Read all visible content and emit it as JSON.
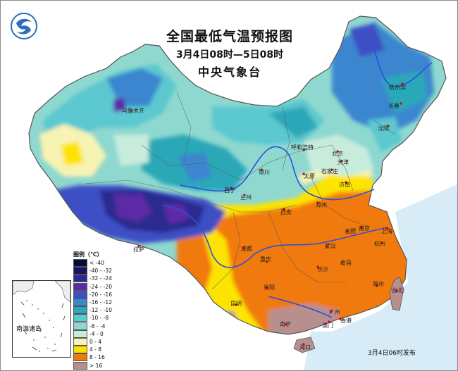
{
  "title": {
    "main": "全国最低气温预报图",
    "period": "3月4日08时—5日08时",
    "issuer": "中央气象台"
  },
  "legend": {
    "title": "图例（℃）",
    "items": [
      {
        "label": "< -40",
        "color": "#0a0a3a"
      },
      {
        "label": "-40 - -32",
        "color": "#151563"
      },
      {
        "label": "-32 - -24",
        "color": "#2a2a8f"
      },
      {
        "label": "-24 - -20",
        "color": "#5b2aa6"
      },
      {
        "label": "-20 - -16",
        "color": "#3e4fc4"
      },
      {
        "label": "-16 - -12",
        "color": "#3a86cf"
      },
      {
        "label": "-12 - -10",
        "color": "#2aa8b8"
      },
      {
        "label": "-10 - -8",
        "color": "#5cc8cf"
      },
      {
        "label": "-8 - -4",
        "color": "#8ed8cf"
      },
      {
        "label": "-4 - 0",
        "color": "#c8ecdc"
      },
      {
        "label": "0 - 4",
        "color": "#f7f3b2"
      },
      {
        "label": "4 - 8",
        "color": "#fde400"
      },
      {
        "label": "8 - 16",
        "color": "#f07a10"
      },
      {
        "label": "> 16",
        "color": "#b88f8f"
      }
    ]
  },
  "cities": [
    "乌鲁木齐",
    "哈尔滨",
    "长春",
    "沈阳",
    "呼和浩特",
    "北京",
    "天津",
    "银川",
    "太原",
    "石家庄",
    "西宁",
    "兰州",
    "济南",
    "西安",
    "郑州",
    "拉萨",
    "合肥",
    "南京",
    "上海",
    "成都",
    "武汉",
    "杭州",
    "重庆",
    "长沙",
    "南昌",
    "贵阳",
    "福州",
    "台北",
    "昆明",
    "南宁",
    "广州",
    "香港",
    "澳门",
    "海口"
  ],
  "inset": {
    "label": "南海诸岛"
  },
  "release": "3月4日06时发布",
  "colors": {
    "river": "#2f4fd8",
    "border": "#555555",
    "sea": "#cfe8f6"
  }
}
